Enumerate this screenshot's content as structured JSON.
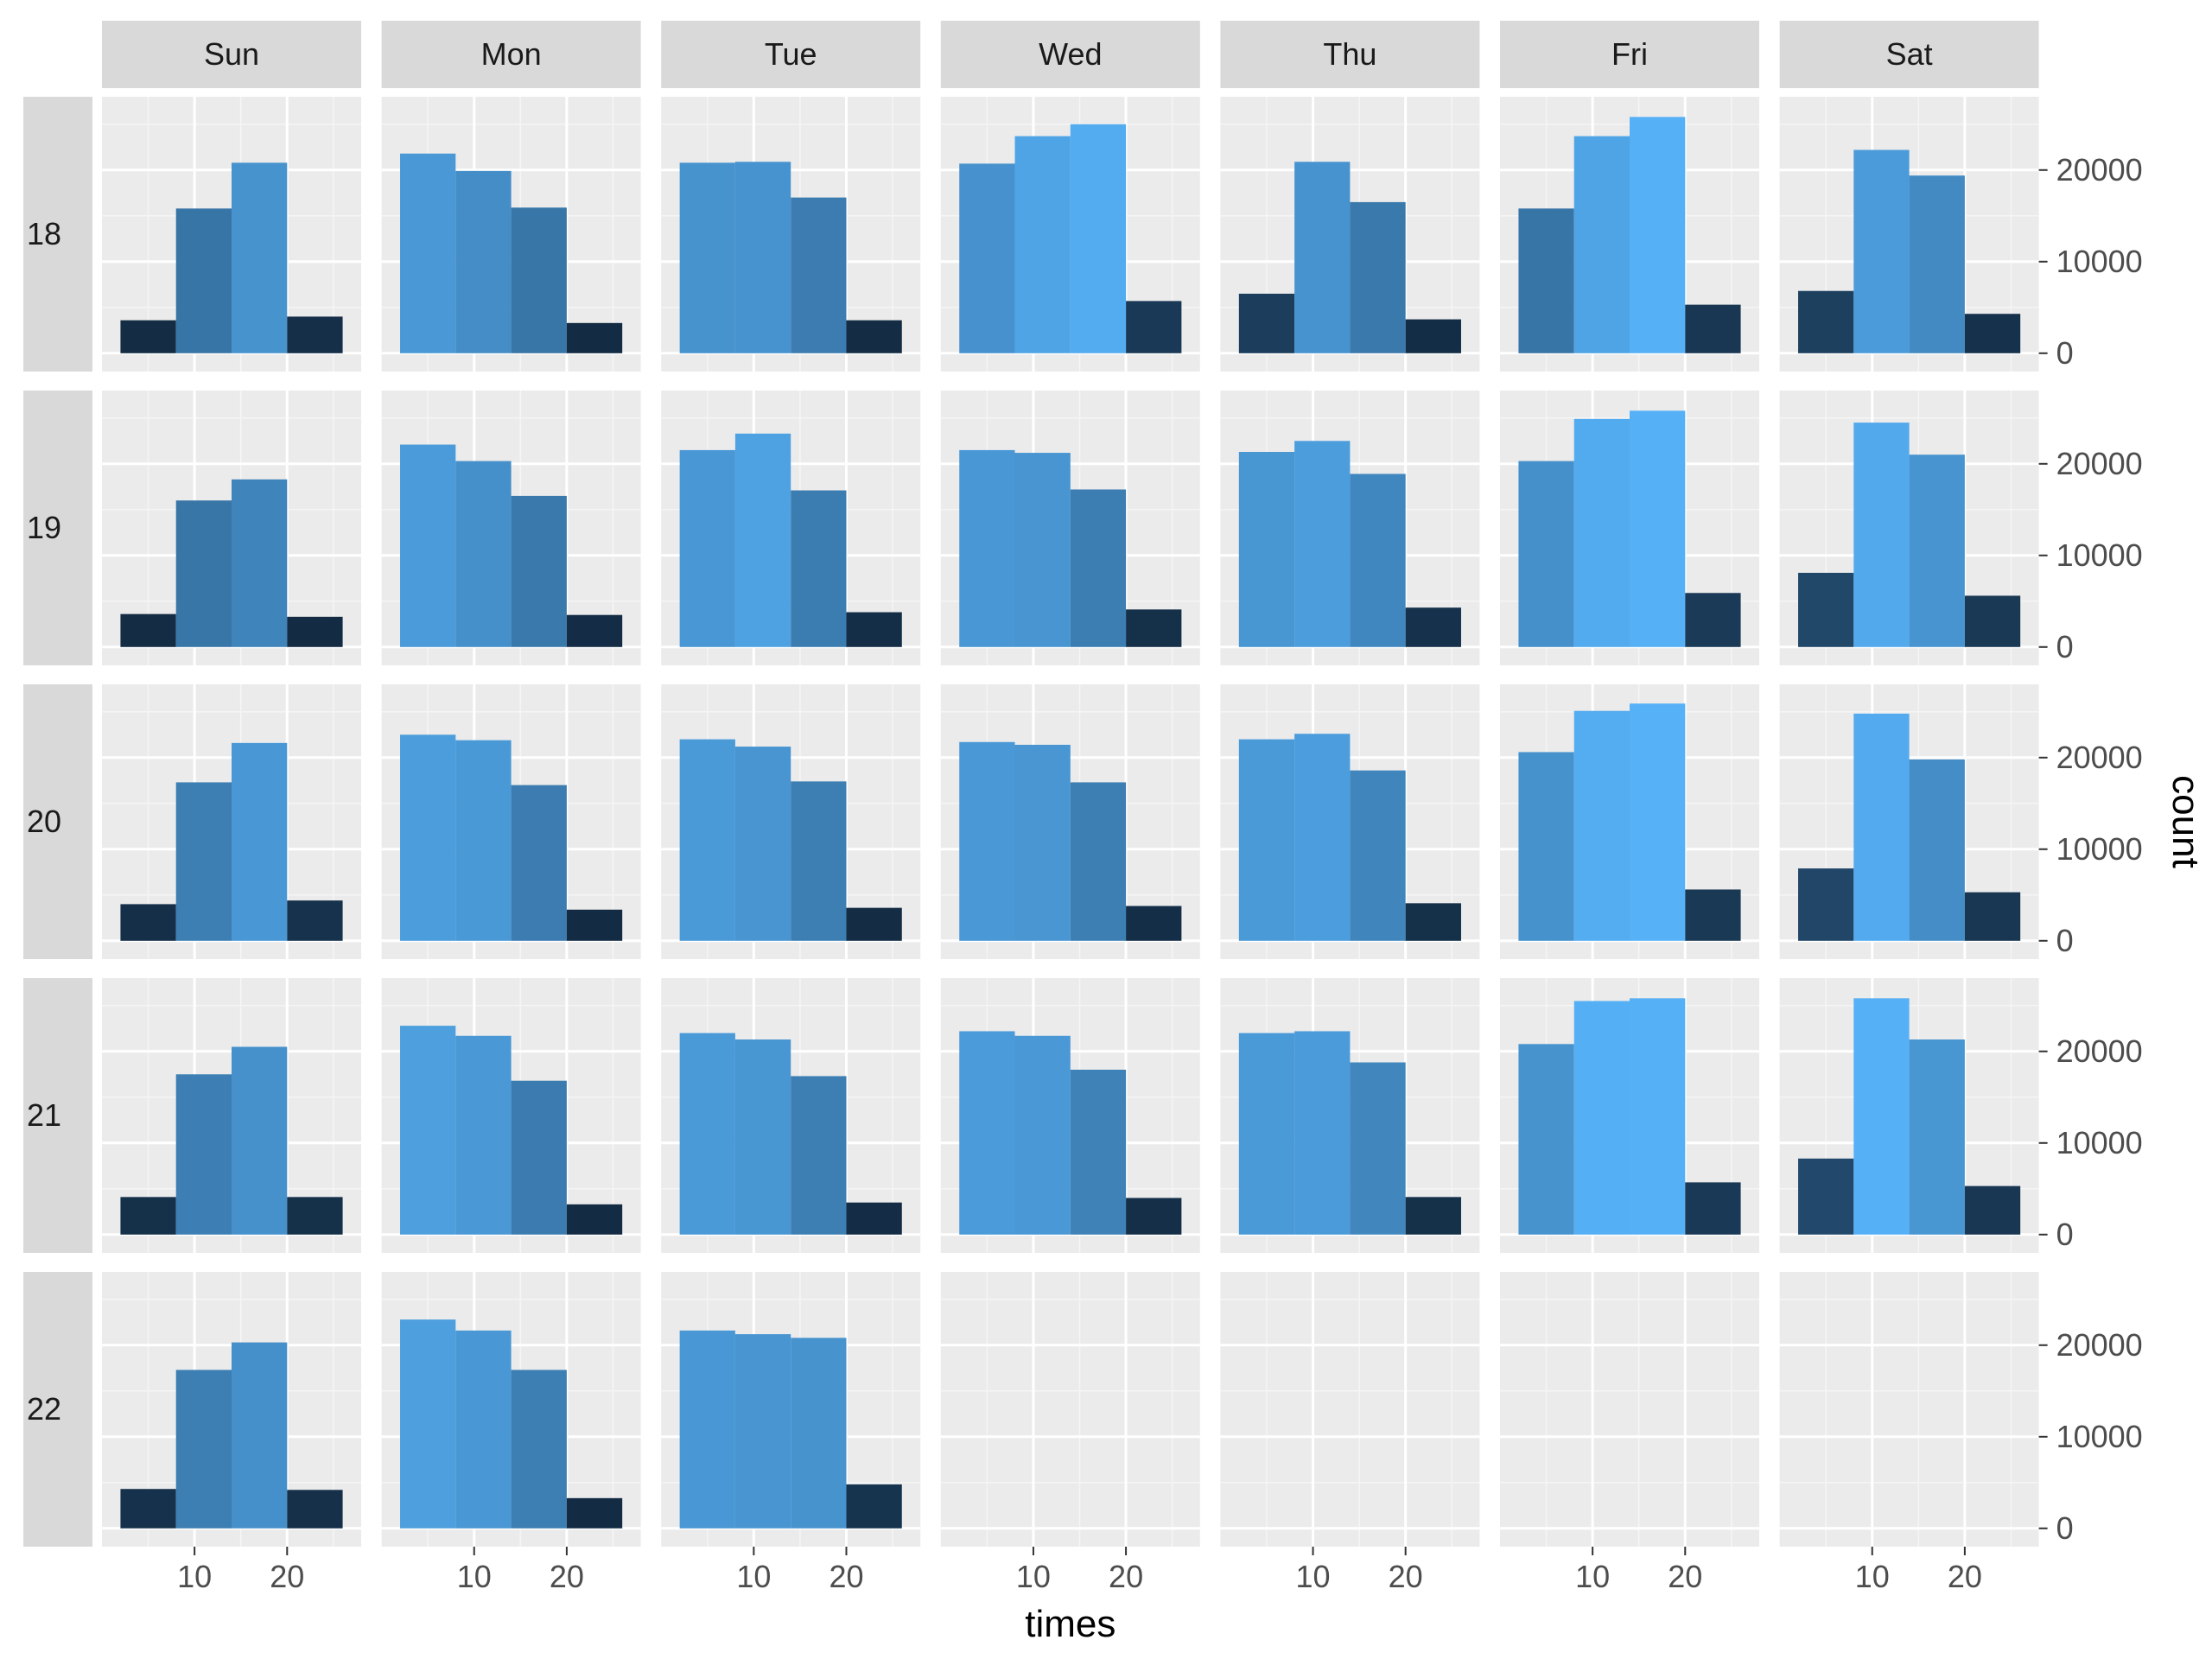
{
  "chart_data": {
    "type": "bar",
    "layout": "facet_grid",
    "column_facets": [
      "Sun",
      "Mon",
      "Tue",
      "Wed",
      "Thu",
      "Fri",
      "Sat"
    ],
    "row_facets": [
      "18",
      "19",
      "20",
      "21",
      "22"
    ],
    "xlabel": "times",
    "ylabel": "count",
    "x_bin_centers": [
      5,
      11,
      17,
      23
    ],
    "xlim": [
      0,
      28
    ],
    "x_ticks": [
      10,
      20
    ],
    "ylim": [
      -2000,
      28000
    ],
    "y_ticks": [
      0,
      10000,
      20000
    ],
    "y_axis_position": "right",
    "grid": true,
    "fill_scale": "count",
    "fill_colors": {
      "low": "#132B43",
      "high": "#56B1F7"
    },
    "panels": [
      {
        "row": "18",
        "col": "Sun",
        "values": [
          3600,
          15800,
          20800,
          4000
        ]
      },
      {
        "row": "18",
        "col": "Mon",
        "values": [
          21800,
          19900,
          15900,
          3300
        ]
      },
      {
        "row": "18",
        "col": "Tue",
        "values": [
          20800,
          20900,
          17000,
          3600
        ]
      },
      {
        "row": "18",
        "col": "Wed",
        "values": [
          20700,
          23700,
          25000,
          5700
        ]
      },
      {
        "row": "18",
        "col": "Thu",
        "values": [
          6500,
          20900,
          16500,
          3700
        ]
      },
      {
        "row": "18",
        "col": "Fri",
        "values": [
          15800,
          23700,
          25800,
          5300
        ]
      },
      {
        "row": "18",
        "col": "Sat",
        "values": [
          6800,
          22200,
          19400,
          4300
        ]
      },
      {
        "row": "19",
        "col": "Sun",
        "values": [
          3600,
          16000,
          18300,
          3300
        ]
      },
      {
        "row": "19",
        "col": "Mon",
        "values": [
          22100,
          20300,
          16500,
          3500
        ]
      },
      {
        "row": "19",
        "col": "Tue",
        "values": [
          21500,
          23300,
          17100,
          3800
        ]
      },
      {
        "row": "19",
        "col": "Wed",
        "values": [
          21500,
          21200,
          17200,
          4100
        ]
      },
      {
        "row": "19",
        "col": "Thu",
        "values": [
          21300,
          22500,
          18900,
          4300
        ]
      },
      {
        "row": "19",
        "col": "Fri",
        "values": [
          20300,
          24900,
          25800,
          5900
        ]
      },
      {
        "row": "19",
        "col": "Sat",
        "values": [
          8100,
          24500,
          21000,
          5600
        ]
      },
      {
        "row": "20",
        "col": "Sun",
        "values": [
          4000,
          17300,
          21600,
          4400
        ]
      },
      {
        "row": "20",
        "col": "Mon",
        "values": [
          22500,
          21900,
          17000,
          3400
        ]
      },
      {
        "row": "20",
        "col": "Tue",
        "values": [
          22000,
          21200,
          17400,
          3600
        ]
      },
      {
        "row": "20",
        "col": "Wed",
        "values": [
          21700,
          21400,
          17300,
          3800
        ]
      },
      {
        "row": "20",
        "col": "Thu",
        "values": [
          22000,
          22600,
          18600,
          4100
        ]
      },
      {
        "row": "20",
        "col": "Fri",
        "values": [
          20600,
          25100,
          25900,
          5600
        ]
      },
      {
        "row": "20",
        "col": "Sat",
        "values": [
          7900,
          24800,
          19800,
          5300
        ]
      },
      {
        "row": "21",
        "col": "Sun",
        "values": [
          4100,
          17500,
          20500,
          4100
        ]
      },
      {
        "row": "21",
        "col": "Mon",
        "values": [
          22800,
          21700,
          16800,
          3300
        ]
      },
      {
        "row": "21",
        "col": "Tue",
        "values": [
          22000,
          21300,
          17300,
          3500
        ]
      },
      {
        "row": "21",
        "col": "Wed",
        "values": [
          22200,
          21700,
          18000,
          4000
        ]
      },
      {
        "row": "21",
        "col": "Thu",
        "values": [
          22000,
          22200,
          18800,
          4100
        ]
      },
      {
        "row": "21",
        "col": "Fri",
        "values": [
          20800,
          25500,
          25800,
          5700
        ]
      },
      {
        "row": "21",
        "col": "Sat",
        "values": [
          8300,
          25800,
          21300,
          5300
        ]
      },
      {
        "row": "22",
        "col": "Sun",
        "values": [
          4300,
          17300,
          20300,
          4200
        ]
      },
      {
        "row": "22",
        "col": "Mon",
        "values": [
          22800,
          21600,
          17300,
          3300
        ]
      },
      {
        "row": "22",
        "col": "Tue",
        "values": [
          21600,
          21200,
          20800,
          4800
        ]
      }
    ]
  }
}
